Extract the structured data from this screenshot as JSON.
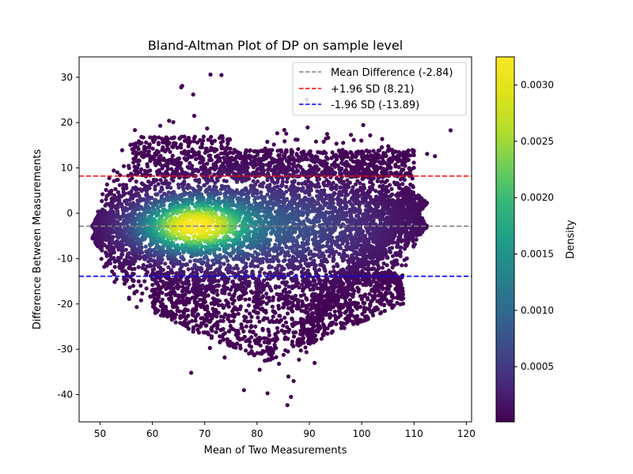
{
  "chart_data": {
    "type": "scatter",
    "title": "Bland-Altman Plot of DP on sample level",
    "xlabel": "Mean of Two Measurements",
    "ylabel": "Difference Between Measurements",
    "xlim": [
      46,
      121
    ],
    "ylim": [
      -46,
      34.5
    ],
    "xticks": [
      50,
      60,
      70,
      80,
      90,
      100,
      110,
      120
    ],
    "yticks": [
      -40,
      -30,
      -20,
      -10,
      0,
      10,
      20,
      30
    ],
    "grid": false,
    "legend_position": "top-right",
    "reference_lines": [
      {
        "label": "Mean Difference (-2.84)",
        "y": -2.84,
        "color": "#808080",
        "style": "dashed"
      },
      {
        "label": "+1.96 SD (8.21)",
        "y": 8.21,
        "color": "#ff0000",
        "style": "dashed"
      },
      {
        "label": "-1.96 SD (-13.89)",
        "y": -13.89,
        "color": "#0000ff",
        "style": "dashed"
      }
    ],
    "colorbar": {
      "label": "Density",
      "colormap": "viridis",
      "range": [
        1e-05,
        0.00325
      ],
      "ticks": [
        0.0005,
        0.001,
        0.0015,
        0.002,
        0.0025,
        0.003
      ],
      "tick_labels": [
        "0.0005",
        "0.0010",
        "0.0015",
        "0.0020",
        "0.0025",
        "0.0030"
      ]
    },
    "density_peak": {
      "x": 68,
      "y": -2.8
    },
    "outliers": [
      {
        "x": 65.5,
        "y": 27.8
      },
      {
        "x": 65.7,
        "y": 28.1
      },
      {
        "x": 67.8,
        "y": 26.2
      },
      {
        "x": 71.1,
        "y": 30.6
      },
      {
        "x": 73.2,
        "y": 30.5
      },
      {
        "x": 63.2,
        "y": 20.4
      },
      {
        "x": 64.0,
        "y": 20.1
      },
      {
        "x": 68.0,
        "y": 21.5
      },
      {
        "x": 61.5,
        "y": 19.3
      },
      {
        "x": 117.0,
        "y": 18.3
      },
      {
        "x": 114.0,
        "y": 12.6
      },
      {
        "x": 112.5,
        "y": 13.1
      },
      {
        "x": 77.5,
        "y": -39.0
      },
      {
        "x": 82.0,
        "y": -39.7
      },
      {
        "x": 85.8,
        "y": -42.3
      },
      {
        "x": 86.5,
        "y": -40.5
      },
      {
        "x": 80.5,
        "y": -34.5
      },
      {
        "x": 84.2,
        "y": -33.2
      },
      {
        "x": 86.0,
        "y": -36.0
      },
      {
        "x": 87.0,
        "y": -37.0
      },
      {
        "x": 71.0,
        "y": -29.7
      },
      {
        "x": 73.8,
        "y": -31.8
      },
      {
        "x": 67.8,
        "y": -26.1
      },
      {
        "x": 91.0,
        "y": -33.0
      },
      {
        "x": 74.5,
        "y": -29.0
      },
      {
        "x": 79.0,
        "y": -30.5
      },
      {
        "x": 83.0,
        "y": -32.0
      }
    ]
  }
}
